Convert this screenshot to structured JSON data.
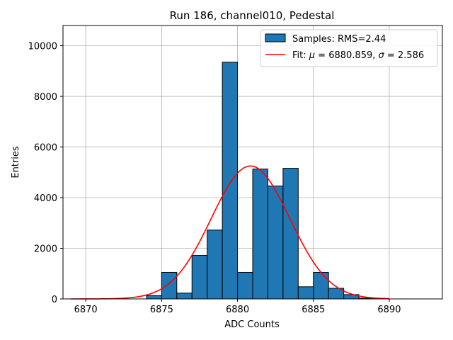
{
  "chart_data": {
    "type": "bar",
    "title": "Run 186, channel010, Pedestal",
    "xlabel": "ADC Counts",
    "ylabel": "Entries",
    "xlim": [
      6868.5,
      6893.5
    ],
    "ylim": [
      0,
      10800
    ],
    "xticks": [
      6870,
      6875,
      6880,
      6885,
      6890
    ],
    "yticks": [
      0,
      2000,
      4000,
      6000,
      8000,
      10000
    ],
    "grid": true,
    "legend_position": "top-right",
    "bin_width": 1,
    "bin_color": "#1f77b4",
    "fit_color": "#ff0000",
    "bins": [
      {
        "x0": 6874,
        "count": 130
      },
      {
        "x0": 6875,
        "count": 1050
      },
      {
        "x0": 6876,
        "count": 230
      },
      {
        "x0": 6877,
        "count": 1720
      },
      {
        "x0": 6878,
        "count": 2720
      },
      {
        "x0": 6879,
        "count": 9350
      },
      {
        "x0": 6880,
        "count": 1050
      },
      {
        "x0": 6881,
        "count": 5130
      },
      {
        "x0": 6882,
        "count": 4460
      },
      {
        "x0": 6883,
        "count": 5160
      },
      {
        "x0": 6884,
        "count": 480
      },
      {
        "x0": 6885,
        "count": 1050
      },
      {
        "x0": 6886,
        "count": 420
      },
      {
        "x0": 6887,
        "count": 170
      },
      {
        "x0": 6888,
        "count": 30
      }
    ],
    "fit": {
      "mu": 6880.859,
      "sigma": 2.586,
      "amplitude": 5250,
      "x_range": [
        6869,
        6890
      ]
    },
    "legend": [
      {
        "kind": "bar",
        "label": "Samples: RMS=2.44"
      },
      {
        "kind": "line",
        "label_prefix": "Fit: ",
        "mu_symbol": "μ",
        "mu_text": " = 6880.859, ",
        "sigma_symbol": "σ",
        "sigma_text": " = 2.586"
      }
    ]
  }
}
